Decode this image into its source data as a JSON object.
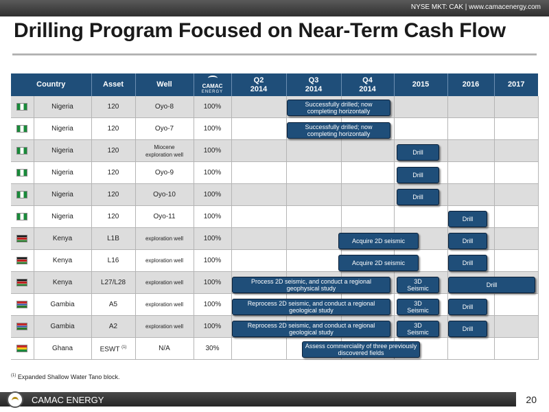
{
  "header": {
    "ticker": "NYSE MKT: CAK | www.camacenergy.com"
  },
  "title": "Drilling Program Focused on Near-Term Cash Flow",
  "columns": {
    "country": "Country",
    "asset": "Asset",
    "well": "Well",
    "logo_top": "CAMAC",
    "logo_bottom": "ENERGY",
    "q2": "Q2",
    "q2_year": "2014",
    "q3": "Q3",
    "q3_year": "2014",
    "q4": "Q4",
    "q4_year": "2014",
    "y2015": "2015",
    "y2016": "2016",
    "y2017": "2017"
  },
  "rows": [
    {
      "country": "Nigeria",
      "asset": "120",
      "well": "Oyo-8",
      "interest": "100%",
      "flag": "nigeria-flag-icon"
    },
    {
      "country": "Nigeria",
      "asset": "120",
      "well": "Oyo-7",
      "interest": "100%",
      "flag": "nigeria-flag-icon"
    },
    {
      "country": "Nigeria",
      "asset": "120",
      "well_line1": "Miocene",
      "well_line2": "exploration well",
      "interest": "100%",
      "flag": "nigeria-flag-icon"
    },
    {
      "country": "Nigeria",
      "asset": "120",
      "well": "Oyo-9",
      "interest": "100%",
      "flag": "nigeria-flag-icon"
    },
    {
      "country": "Nigeria",
      "asset": "120",
      "well": "Oyo-10",
      "interest": "100%",
      "flag": "nigeria-flag-icon"
    },
    {
      "country": "Nigeria",
      "asset": "120",
      "well": "Oyo-11",
      "interest": "100%",
      "flag": "nigeria-flag-icon"
    },
    {
      "country": "Kenya",
      "asset": "L1B",
      "well": "exploration well",
      "interest": "100%",
      "flag": "kenya-flag-icon"
    },
    {
      "country": "Kenya",
      "asset": "L16",
      "well": "exploration well",
      "interest": "100%",
      "flag": "kenya-flag-icon"
    },
    {
      "country": "Kenya",
      "asset": "L27/L28",
      "well": "exploration well",
      "interest": "100%",
      "flag": "kenya-flag-icon"
    },
    {
      "country": "Gambia",
      "asset": "A5",
      "well": "exploration well",
      "interest": "100%",
      "flag": "gambia-flag-icon"
    },
    {
      "country": "Gambia",
      "asset": "A2",
      "well": "exploration well",
      "interest": "100%",
      "flag": "gambia-flag-icon"
    },
    {
      "country": "Ghana",
      "asset": "ESWT",
      "asset_sup": "(1)",
      "well": "N/A",
      "interest": "30%",
      "flag": "ghana-flag-icon"
    }
  ],
  "bars": {
    "oyo8": "Successfully drilled; now completing horizontally",
    "oyo7": "Successfully drilled; now completing horizontally",
    "miocene": "Drill",
    "oyo9": "Drill",
    "oyo10": "Drill",
    "oyo11": "Drill",
    "l1b_seismic": "Acquire 2D seismic",
    "l1b_drill": "Drill",
    "l16_seismic": "Acquire 2D seismic",
    "l16_drill": "Drill",
    "l27_process": "Process 2D seismic, and conduct a regional geophysical study",
    "l27_3d_line1": "3D",
    "l27_3d_line2": "Seismic",
    "l27_drill": "Drill",
    "a5_reprocess": "Reprocess 2D seismic, and conduct a regional geological study",
    "a5_3d_line1": "3D",
    "a5_3d_line2": "Seismic",
    "a5_drill": "Drill",
    "a2_reprocess": "Reprocess 2D seismic, and conduct a regional geological study",
    "a2_3d_line1": "3D",
    "a2_3d_line2": "Seismic",
    "a2_drill": "Drill",
    "eswt_assess": "Assess commerciality of three previously discovered fields"
  },
  "footnote": {
    "marker": "(1)",
    "text": "Expanded Shallow Water Tano block."
  },
  "footer": {
    "company": "CAMAC ENERGY",
    "page": "20"
  },
  "colors": {
    "header_blue": "#1f4e79",
    "bar_blue": "#1f4e79"
  }
}
